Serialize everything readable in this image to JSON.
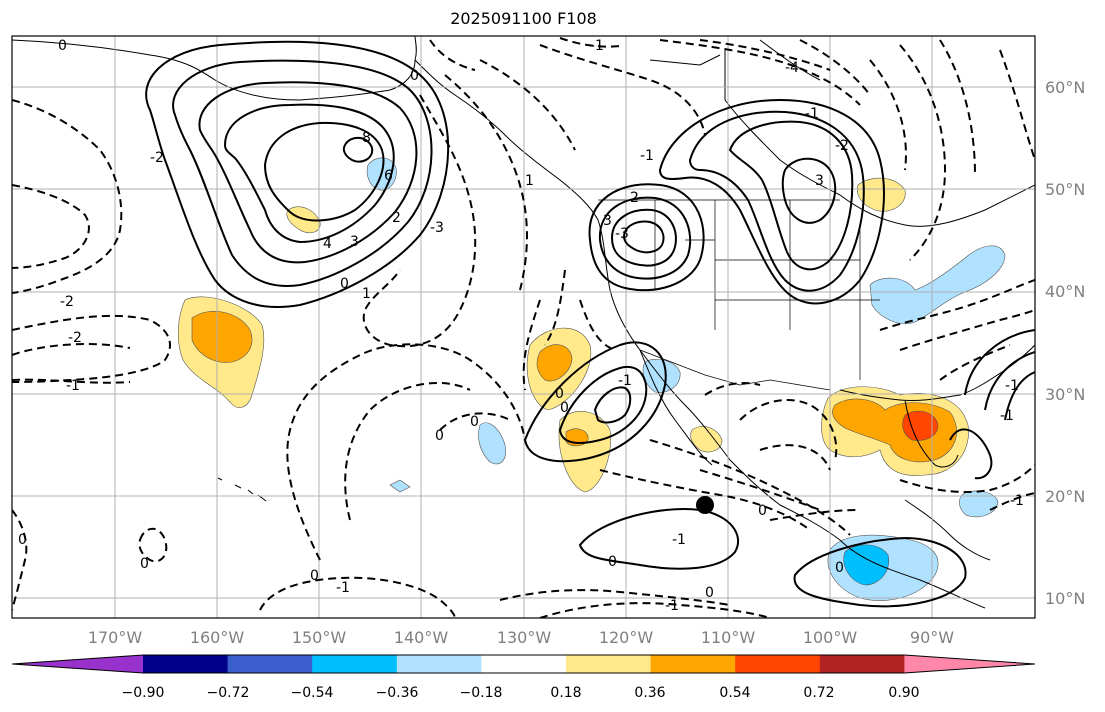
{
  "title": "2025091100 F108",
  "map": {
    "lat_labels": [
      "60°N",
      "50°N",
      "40°N",
      "30°N",
      "20°N",
      "10°N"
    ],
    "lon_labels": [
      "170°W",
      "160°W",
      "150°W",
      "140°W",
      "130°W",
      "120°W",
      "110°W",
      "100°W",
      "90°W"
    ],
    "lat_values": [
      60,
      50,
      40,
      30,
      20,
      10
    ],
    "lon_values": [
      -170,
      -160,
      -150,
      -140,
      -130,
      -120,
      -110,
      -100,
      -90
    ],
    "contour_labels": [
      "0",
      "-1",
      "-4",
      "8",
      "6",
      "-2",
      "4",
      "3",
      "2",
      "1",
      "0",
      "-2",
      "-2",
      "-1",
      "-3",
      "2",
      "-3",
      "3",
      "-1",
      "0",
      "0",
      "-1",
      "-1",
      "-1",
      "0",
      "-1",
      "0",
      "-2",
      "3",
      "0",
      "-1",
      "0",
      "1",
      "0",
      "0",
      "-1",
      "0",
      "-1",
      "0",
      "-1",
      "0",
      "0"
    ]
  },
  "colorbar": {
    "colors": [
      "#9932cc",
      "#00008b",
      "#3a5fcd",
      "#00bfff",
      "#b0e2ff",
      "#ffffff",
      "#ffe98a",
      "#ffa500",
      "#ff4500",
      "#b22222",
      "#ff88aa"
    ],
    "ticks": [
      "−0.90",
      "−0.72",
      "−0.54",
      "−0.36",
      "−0.18",
      "0.18",
      "0.36",
      "0.54",
      "0.72",
      "0.90"
    ]
  }
}
